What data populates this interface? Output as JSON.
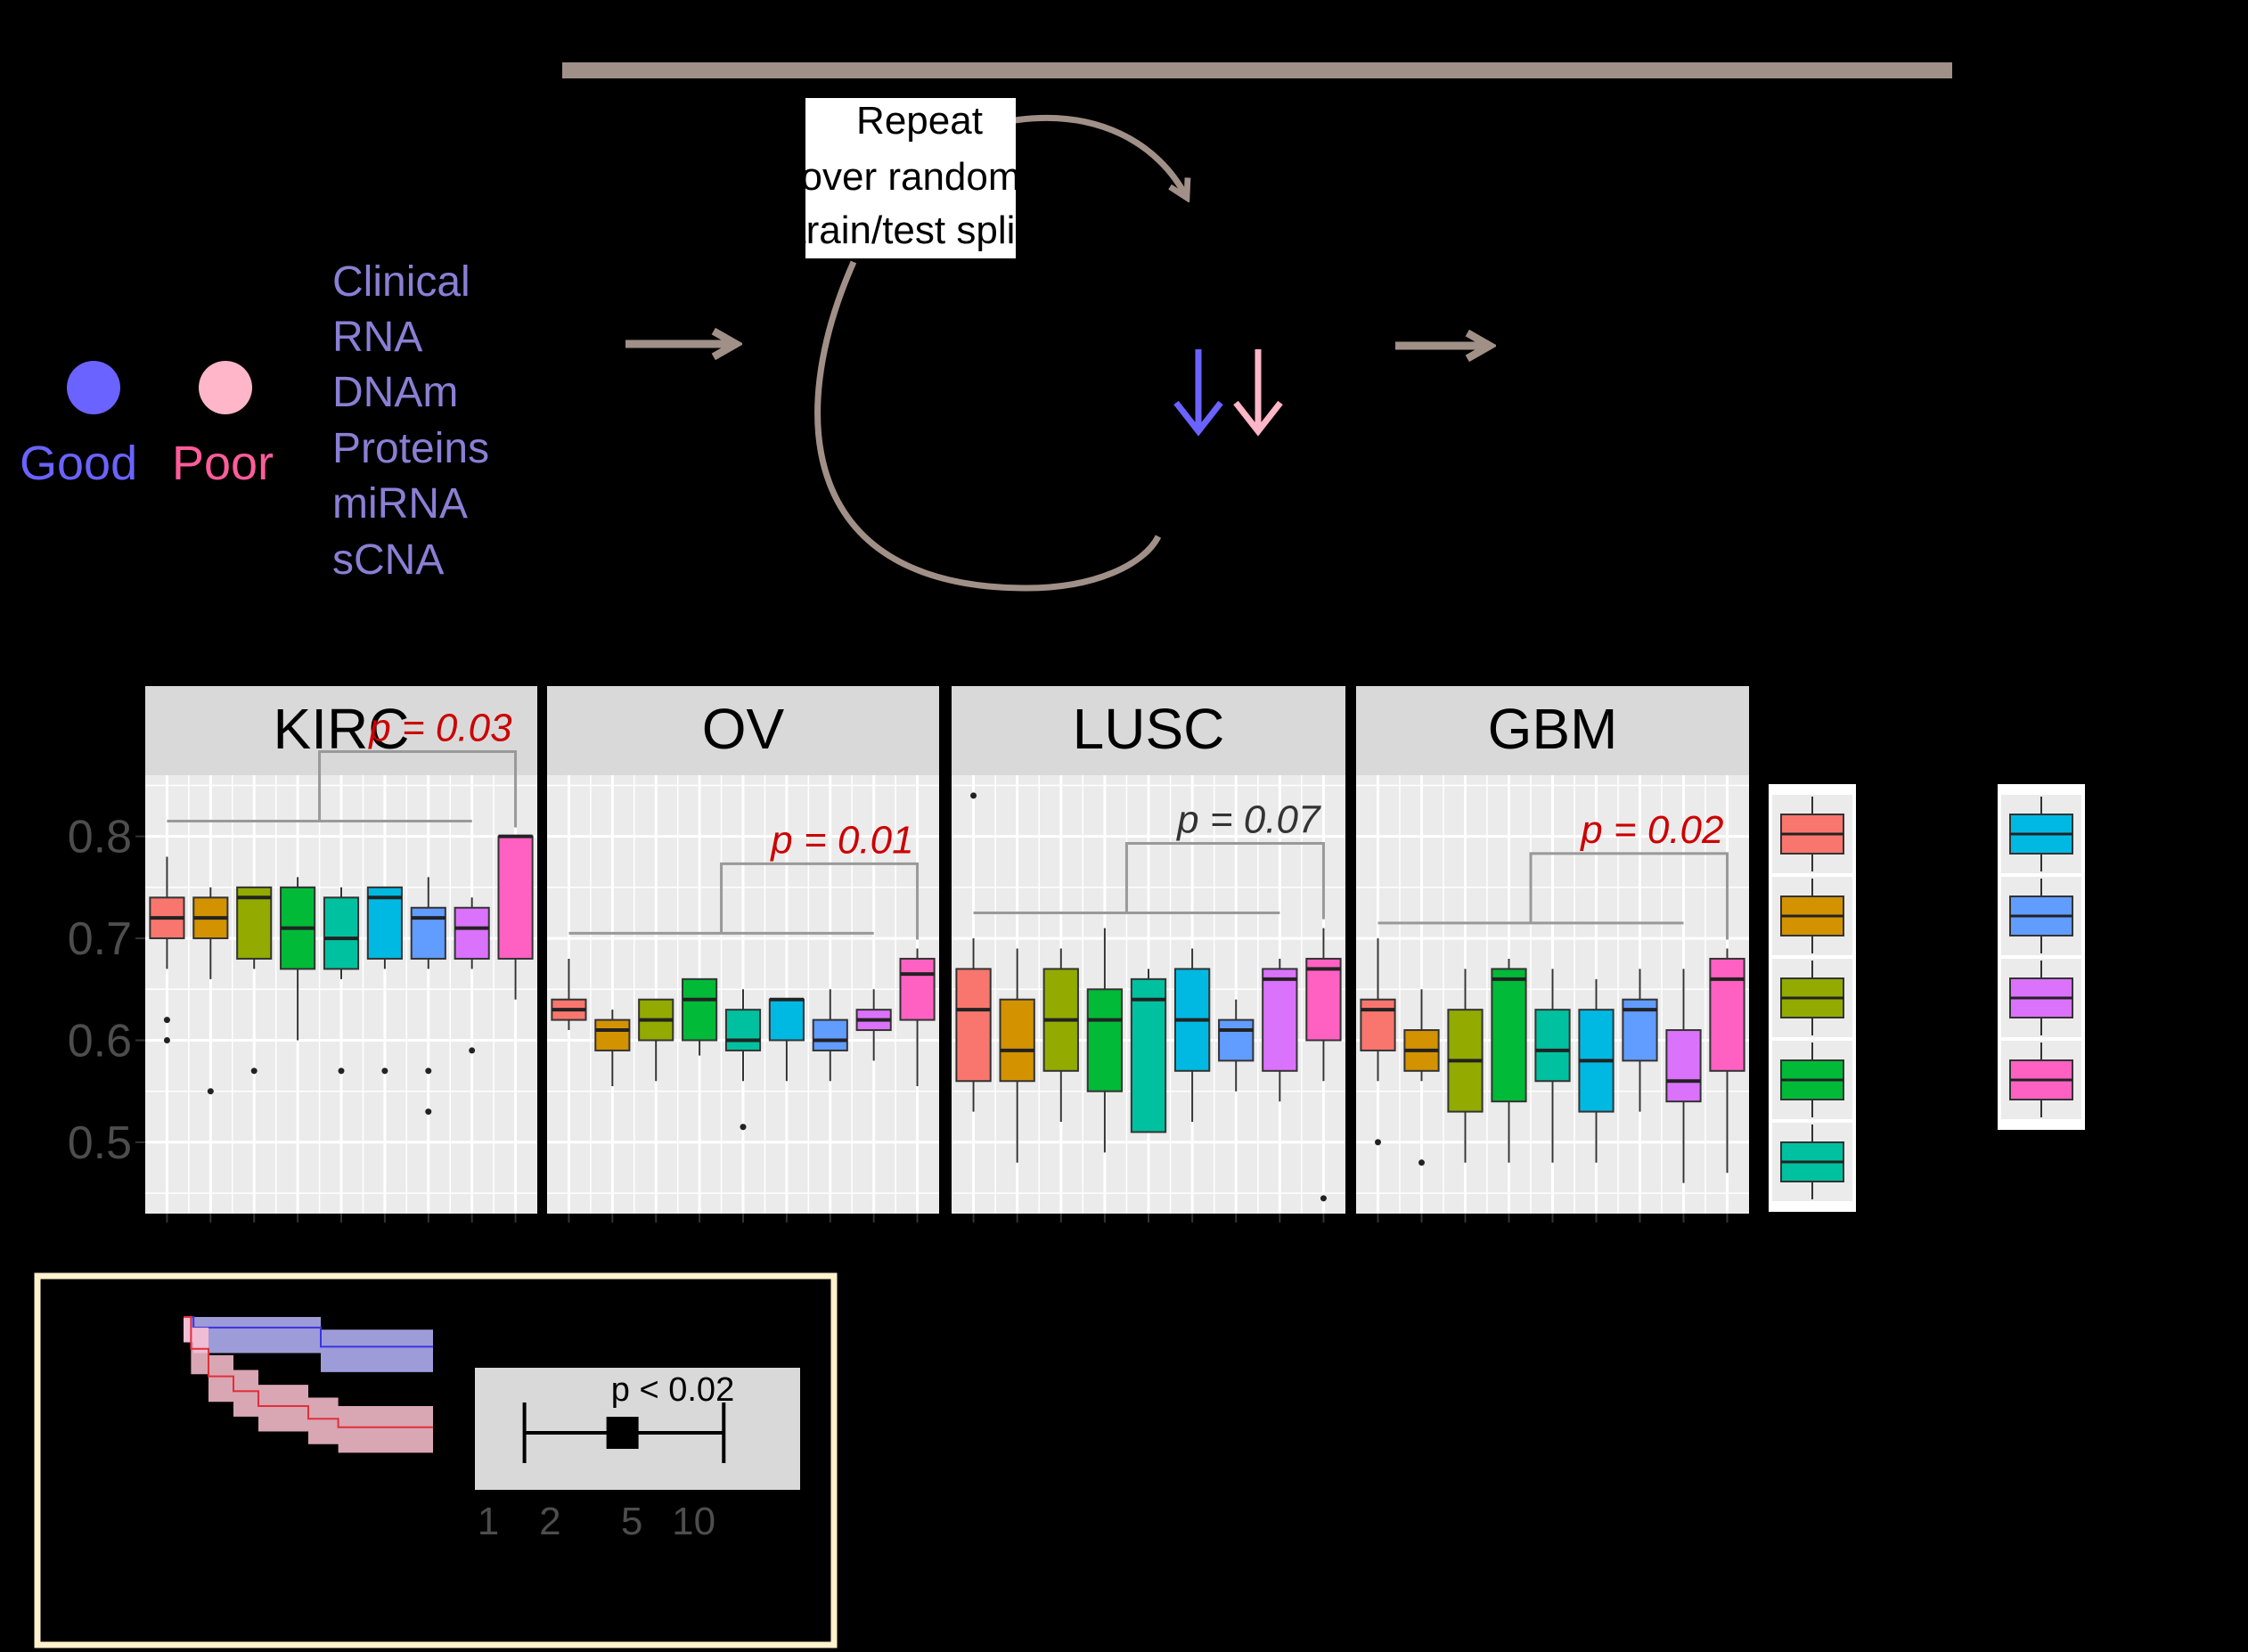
{
  "colors": {
    "background": "#000000",
    "arrow": "#a09088",
    "good": "#6b63ff",
    "poor": "#ffb6c9",
    "good_text": "#6b63ff",
    "poor_text": "#ff5c9a",
    "omics_text": "#8a7fd4",
    "panel_bg": "#ebebeb",
    "strip_bg": "#d9d9d9",
    "sig": "#cc0000",
    "nonsig": "#333333",
    "km_frame": "#fff2cc",
    "box_palette": [
      "#f8766d",
      "#d39200",
      "#93aa00",
      "#00ba38",
      "#00c19f",
      "#00b9e3",
      "#619cff",
      "#db72fb",
      "#ff61c3"
    ]
  },
  "flow": {
    "repeat_lines": [
      "Repeat",
      "over random",
      "train/test split"
    ]
  },
  "legend": {
    "good_label": "Good",
    "poor_label": "Poor"
  },
  "omics": [
    "Clinical",
    "RNA",
    "DNAm",
    "Proteins",
    "miRNA",
    "sCNA"
  ],
  "chart_data": [
    {
      "type": "box",
      "panel": "KIRC",
      "ylim": [
        0.43,
        0.86
      ],
      "yticks": [
        0.5,
        0.6,
        0.7,
        0.8
      ],
      "pvalue": {
        "label": "p = 0.03",
        "significant": true
      },
      "boxes": [
        {
          "min": 0.67,
          "q1": 0.7,
          "median": 0.72,
          "q3": 0.74,
          "max": 0.78,
          "outliers": [
            0.62,
            0.6
          ]
        },
        {
          "min": 0.66,
          "q1": 0.7,
          "median": 0.72,
          "q3": 0.74,
          "max": 0.75,
          "outliers": [
            0.55
          ]
        },
        {
          "min": 0.67,
          "q1": 0.68,
          "median": 0.74,
          "q3": 0.75,
          "max": 0.75,
          "outliers": [
            0.57
          ]
        },
        {
          "min": 0.6,
          "q1": 0.67,
          "median": 0.71,
          "q3": 0.75,
          "max": 0.76,
          "outliers": []
        },
        {
          "min": 0.66,
          "q1": 0.67,
          "median": 0.7,
          "q3": 0.74,
          "max": 0.75,
          "outliers": [
            0.57
          ]
        },
        {
          "min": 0.67,
          "q1": 0.68,
          "median": 0.74,
          "q3": 0.75,
          "max": 0.75,
          "outliers": [
            0.57
          ]
        },
        {
          "min": 0.67,
          "q1": 0.68,
          "median": 0.72,
          "q3": 0.73,
          "max": 0.76,
          "outliers": [
            0.57,
            0.53
          ]
        },
        {
          "min": 0.67,
          "q1": 0.68,
          "median": 0.71,
          "q3": 0.73,
          "max": 0.74,
          "outliers": [
            0.59
          ]
        },
        {
          "min": 0.64,
          "q1": 0.68,
          "median": 0.8,
          "q3": 0.8,
          "max": 0.8,
          "outliers": []
        }
      ]
    },
    {
      "type": "box",
      "panel": "OV",
      "ylim": [
        0.43,
        0.86
      ],
      "pvalue": {
        "label": "p = 0.01",
        "significant": true
      },
      "boxes": [
        {
          "min": 0.61,
          "q1": 0.62,
          "median": 0.63,
          "q3": 0.64,
          "max": 0.68,
          "outliers": []
        },
        {
          "min": 0.555,
          "q1": 0.59,
          "median": 0.61,
          "q3": 0.62,
          "max": 0.63,
          "outliers": []
        },
        {
          "min": 0.56,
          "q1": 0.6,
          "median": 0.62,
          "q3": 0.64,
          "max": 0.64,
          "outliers": []
        },
        {
          "min": 0.585,
          "q1": 0.6,
          "median": 0.64,
          "q3": 0.66,
          "max": 0.66,
          "outliers": []
        },
        {
          "min": 0.56,
          "q1": 0.59,
          "median": 0.6,
          "q3": 0.63,
          "max": 0.65,
          "outliers": [
            0.515
          ]
        },
        {
          "min": 0.56,
          "q1": 0.6,
          "median": 0.64,
          "q3": 0.64,
          "max": 0.64,
          "outliers": []
        },
        {
          "min": 0.56,
          "q1": 0.59,
          "median": 0.6,
          "q3": 0.62,
          "max": 0.65,
          "outliers": []
        },
        {
          "min": 0.58,
          "q1": 0.61,
          "median": 0.62,
          "q3": 0.63,
          "max": 0.65,
          "outliers": []
        },
        {
          "min": 0.555,
          "q1": 0.62,
          "median": 0.665,
          "q3": 0.68,
          "max": 0.69,
          "outliers": []
        }
      ]
    },
    {
      "type": "box",
      "panel": "LUSC",
      "ylim": [
        0.43,
        0.86
      ],
      "pvalue": {
        "label": "p = 0.07",
        "significant": false
      },
      "boxes": [
        {
          "min": 0.53,
          "q1": 0.56,
          "median": 0.63,
          "q3": 0.67,
          "max": 0.7,
          "outliers": [
            0.84
          ]
        },
        {
          "min": 0.48,
          "q1": 0.56,
          "median": 0.59,
          "q3": 0.64,
          "max": 0.69,
          "outliers": []
        },
        {
          "min": 0.52,
          "q1": 0.57,
          "median": 0.62,
          "q3": 0.67,
          "max": 0.69,
          "outliers": []
        },
        {
          "min": 0.49,
          "q1": 0.55,
          "median": 0.62,
          "q3": 0.65,
          "max": 0.71,
          "outliers": []
        },
        {
          "min": 0.51,
          "q1": 0.51,
          "median": 0.64,
          "q3": 0.66,
          "max": 0.67,
          "outliers": []
        },
        {
          "min": 0.52,
          "q1": 0.57,
          "median": 0.62,
          "q3": 0.67,
          "max": 0.69,
          "outliers": []
        },
        {
          "min": 0.55,
          "q1": 0.58,
          "median": 0.61,
          "q3": 0.62,
          "max": 0.64,
          "outliers": []
        },
        {
          "min": 0.54,
          "q1": 0.57,
          "median": 0.66,
          "q3": 0.67,
          "max": 0.68,
          "outliers": []
        },
        {
          "min": 0.56,
          "q1": 0.6,
          "median": 0.67,
          "q3": 0.68,
          "max": 0.71,
          "outliers": [
            0.445
          ]
        }
      ]
    },
    {
      "type": "box",
      "panel": "GBM",
      "ylim": [
        0.43,
        0.86
      ],
      "pvalue": {
        "label": "p = 0.02",
        "significant": true
      },
      "boxes": [
        {
          "min": 0.56,
          "q1": 0.59,
          "median": 0.63,
          "q3": 0.64,
          "max": 0.7,
          "outliers": [
            0.5
          ]
        },
        {
          "min": 0.56,
          "q1": 0.57,
          "median": 0.59,
          "q3": 0.61,
          "max": 0.65,
          "outliers": [
            0.48
          ]
        },
        {
          "min": 0.48,
          "q1": 0.53,
          "median": 0.58,
          "q3": 0.63,
          "max": 0.67,
          "outliers": []
        },
        {
          "min": 0.48,
          "q1": 0.54,
          "median": 0.66,
          "q3": 0.67,
          "max": 0.68,
          "outliers": []
        },
        {
          "min": 0.48,
          "q1": 0.56,
          "median": 0.59,
          "q3": 0.63,
          "max": 0.67,
          "outliers": []
        },
        {
          "min": 0.48,
          "q1": 0.53,
          "median": 0.58,
          "q3": 0.63,
          "max": 0.66,
          "outliers": []
        },
        {
          "min": 0.53,
          "q1": 0.58,
          "median": 0.63,
          "q3": 0.64,
          "max": 0.67,
          "outliers": []
        },
        {
          "min": 0.46,
          "q1": 0.54,
          "median": 0.56,
          "q3": 0.61,
          "max": 0.67,
          "outliers": []
        },
        {
          "min": 0.47,
          "q1": 0.57,
          "median": 0.66,
          "q3": 0.68,
          "max": 0.69,
          "outliers": []
        }
      ]
    },
    {
      "type": "line",
      "panel": "km",
      "ylim": [
        0,
        1
      ],
      "series": [
        {
          "steps": [
            [
              0,
              1
            ],
            [
              0.04,
              0.95
            ],
            [
              0.3,
              0.95
            ],
            [
              0.55,
              0.86
            ],
            [
              1,
              0.86
            ]
          ],
          "band": [
            0.08,
            0.12
          ]
        },
        {
          "steps": [
            [
              0,
              1
            ],
            [
              0.03,
              0.85
            ],
            [
              0.1,
              0.72
            ],
            [
              0.2,
              0.65
            ],
            [
              0.3,
              0.58
            ],
            [
              0.5,
              0.52
            ],
            [
              0.62,
              0.48
            ],
            [
              1,
              0.48
            ]
          ],
          "band": [
            0.1,
            0.12
          ]
        }
      ]
    },
    {
      "type": "forest",
      "panel": "forest",
      "xticks": [
        "1",
        "2",
        "5",
        "10"
      ],
      "estimate": 4.5,
      "ci": [
        1.5,
        14
      ],
      "label": "p < 0.02"
    }
  ]
}
